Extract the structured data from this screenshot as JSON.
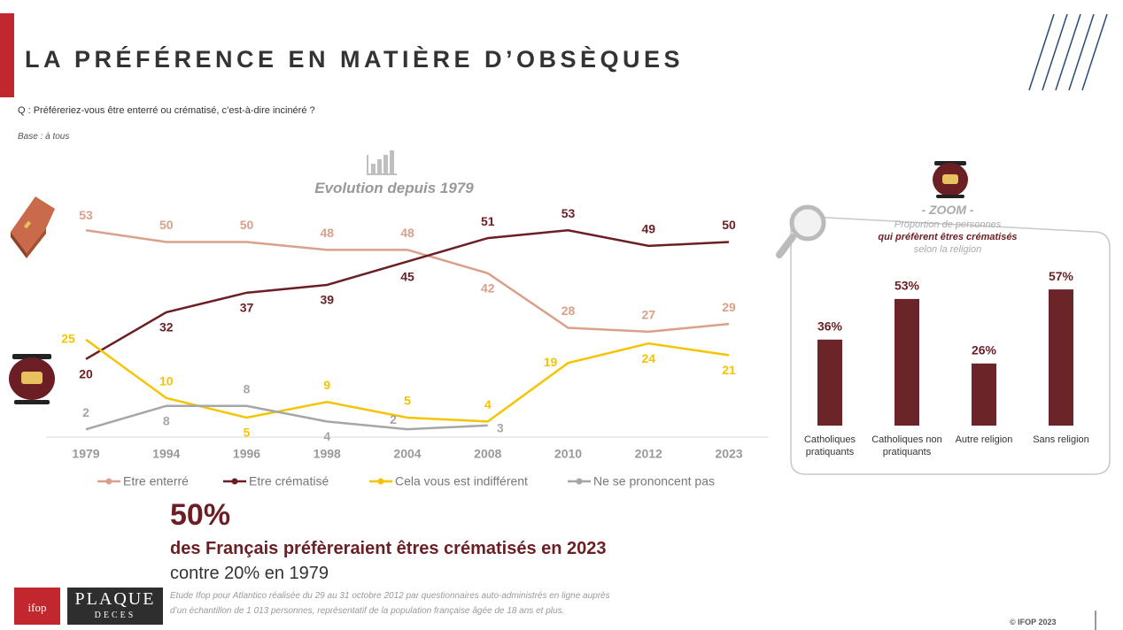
{
  "header": {
    "title": "LA PRÉFÉRENCE EN MATIÈRE D’OBSÈQUES",
    "question": "Q : Préféreriez-vous être enterré ou crématisé, c’est-à-dire incinéré ?",
    "base": "Base : à tous"
  },
  "chart_data": [
    {
      "type": "line",
      "title": "Evolution depuis 1979",
      "categories": [
        "1979",
        "1994",
        "1996",
        "1998",
        "2004",
        "2008",
        "2010",
        "2012",
        "2023"
      ],
      "series": [
        {
          "name": "Etre enterré",
          "color": "#d9a08a",
          "values": [
            53,
            50,
            50,
            48,
            48,
            42,
            28,
            27,
            29
          ]
        },
        {
          "name": "Etre crématisé",
          "color": "#6b1f24",
          "values": [
            20,
            32,
            37,
            39,
            45,
            51,
            53,
            49,
            50
          ]
        },
        {
          "name": "Cela vous est indifférent",
          "color": "#f5c400",
          "values": [
            25,
            10,
            5,
            9,
            5,
            4,
            19,
            24,
            21
          ]
        },
        {
          "name": "Ne se prononcent pas",
          "color": "#a6a6a6",
          "values": [
            2,
            8,
            8,
            4,
            2,
            3,
            null,
            null,
            null
          ]
        }
      ]
    },
    {
      "type": "bar",
      "title": "- ZOOM -",
      "subtitle": [
        "Proportion de personnes",
        "qui préfèrent êtres crématisés",
        "selon la religion"
      ],
      "categories": [
        "Catholiques pratiquants",
        "Catholiques non pratiquants",
        "Autre religion",
        "Sans religion"
      ],
      "values": [
        36,
        53,
        26,
        57
      ],
      "value_labels": [
        "36%",
        "53%",
        "26%",
        "57%"
      ],
      "color": "#6b2427"
    }
  ],
  "highlight": {
    "figure": "50%",
    "text": "des Français préfèreraient êtres crématisés en 2023",
    "comparison": "contre 20% en 1979"
  },
  "footer": {
    "note": [
      "Etude Ifop pour Atlantico réalisée du 29 au 31 octobre 2012 par questionnaires auto-administrés en ligne auprès",
      "d’un échantillon de 1 013 personnes, représentatif de la population française âgée de 18 ans et plus."
    ],
    "logo_ifop": "ifop",
    "logo_plaque": "PLAQUE",
    "logo_deces": "DECES",
    "copyright": "© IFOP 2023"
  }
}
